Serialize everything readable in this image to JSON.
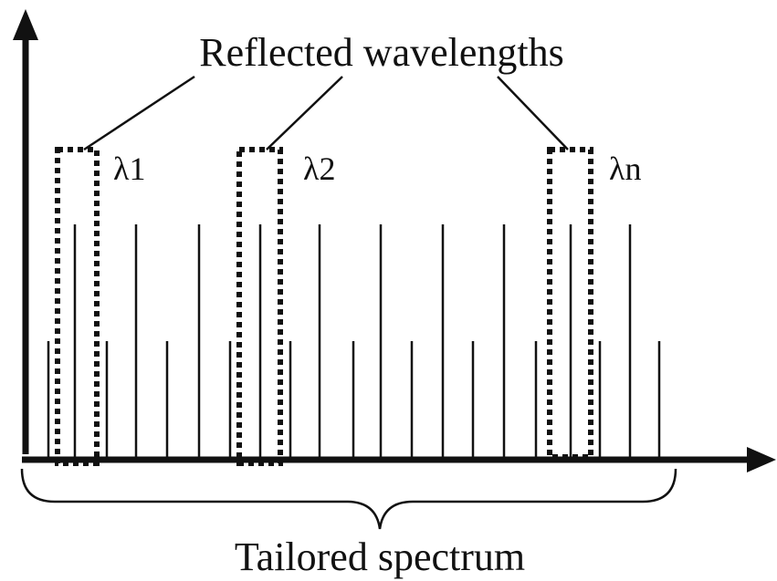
{
  "title": "Reflected wavelengths",
  "bottom_label": "Tailored spectrum",
  "wavelength_labels": [
    "λ1",
    "λ2",
    "λn"
  ],
  "colors": {
    "line": "#111111",
    "background": "#ffffff"
  },
  "spectrum": {
    "tall_line_count": 10,
    "short_line_count": 12
  }
}
